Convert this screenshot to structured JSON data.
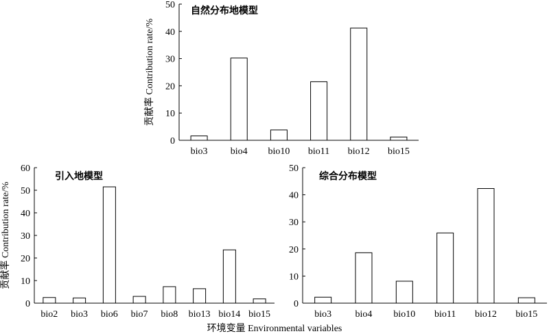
{
  "xlabel": "环境变量 Environmental variables",
  "chart_data": [
    {
      "type": "bar",
      "title": "自然分布地模型",
      "ylabel": "贡献率 Contribution rate/%",
      "categories": [
        "bio3",
        "bio4",
        "bio10",
        "bio11",
        "bio12",
        "bio15"
      ],
      "values": [
        1.6,
        30.2,
        3.8,
        21.5,
        41.2,
        1.2
      ],
      "ylim": [
        0,
        50
      ],
      "yticks": [
        0,
        10,
        20,
        30,
        40,
        50
      ],
      "grid": false
    },
    {
      "type": "bar",
      "title": "引入地模型",
      "ylabel": "贡献率 Contribution rate/%",
      "categories": [
        "bio2",
        "bio3",
        "bio6",
        "bio7",
        "bio8",
        "bio13",
        "bio14",
        "bio15"
      ],
      "values": [
        2.5,
        2.3,
        51.5,
        3.0,
        7.3,
        6.4,
        23.6,
        1.9
      ],
      "ylim": [
        0,
        60
      ],
      "yticks": [
        0,
        10,
        20,
        30,
        40,
        50,
        60
      ],
      "grid": false
    },
    {
      "type": "bar",
      "title": "综合分布模型",
      "ylabel": "",
      "categories": [
        "bio3",
        "bio4",
        "bio10",
        "bio11",
        "bio12",
        "bio15"
      ],
      "values": [
        2.2,
        18.6,
        8.1,
        25.9,
        42.3,
        2.0
      ],
      "ylim": [
        0,
        50
      ],
      "yticks": [
        0,
        10,
        20,
        30,
        40,
        50
      ],
      "grid": false
    }
  ]
}
